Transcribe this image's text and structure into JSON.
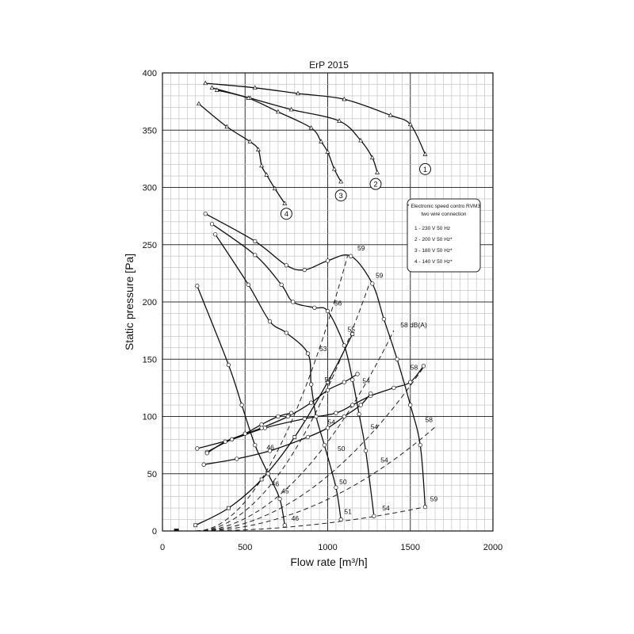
{
  "chart_data": {
    "type": "line",
    "title": "ErP 2015",
    "xlabel": "Flow rate [m³/h]",
    "ylabel": "Static pressure [Pa]",
    "xlim": [
      0,
      2000
    ],
    "ylim": [
      0,
      400
    ],
    "xticks": [
      0,
      500,
      1000,
      1500,
      2000
    ],
    "yticks": [
      0,
      50,
      100,
      150,
      200,
      250,
      300,
      350,
      400
    ],
    "grid": true,
    "legend": {
      "title": "* Electronic speed contro RVM3",
      "subtitle": "two wire connection",
      "entries": [
        "1 - 230 V 50 Hz",
        "2 - 200 V 50 Hz*",
        "3 - 180 V 50 Hz*",
        "4 - 140 V 50 Hz*"
      ]
    },
    "series": [
      {
        "name": "1",
        "marker": "triangle",
        "x": [
          260,
          560,
          820,
          1100,
          1380,
          1500,
          1590
        ],
        "y": [
          391,
          387,
          382,
          377,
          363,
          355,
          329
        ]
      },
      {
        "name": "2",
        "marker": "triangle",
        "x": [
          300,
          530,
          780,
          1070,
          1200,
          1270,
          1300
        ],
        "y": [
          387,
          378,
          368,
          358,
          341,
          326,
          313
        ]
      },
      {
        "name": "3",
        "marker": "triangle",
        "x": [
          330,
          520,
          700,
          900,
          960,
          1000,
          1040,
          1080
        ],
        "y": [
          385,
          378,
          366,
          352,
          340,
          331,
          316,
          305
        ]
      },
      {
        "name": "4",
        "marker": "triangle",
        "x": [
          220,
          390,
          530,
          580,
          600,
          630,
          680,
          740
        ],
        "y": [
          373,
          353,
          340,
          333,
          319,
          311,
          299,
          286
        ]
      },
      {
        "marker": "circle",
        "x": [
          260,
          560,
          750,
          860,
          1000,
          1140,
          1270,
          1340,
          1420,
          1500,
          1560,
          1590
        ],
        "y": [
          277,
          253,
          232,
          228,
          236,
          240,
          216,
          185,
          150,
          110,
          75,
          21
        ]
      },
      {
        "marker": "circle",
        "x": [
          300,
          560,
          720,
          790,
          920,
          1000,
          1100,
          1150,
          1190,
          1230,
          1280
        ],
        "y": [
          268,
          241,
          215,
          200,
          195,
          192,
          162,
          132,
          102,
          70,
          13
        ]
      },
      {
        "marker": "circle",
        "x": [
          320,
          520,
          650,
          750,
          880,
          900,
          930,
          980,
          1050,
          1080
        ],
        "y": [
          259,
          215,
          183,
          173,
          155,
          128,
          100,
          75,
          38,
          10
        ]
      },
      {
        "marker": "circle",
        "x": [
          210,
          400,
          480,
          560,
          640,
          710,
          740
        ],
        "y": [
          214,
          145,
          110,
          75,
          50,
          28,
          5
        ]
      },
      {
        "marker": "circle",
        "x": [
          210,
          420,
          620,
          860,
          1050,
          1150,
          1260,
          1400,
          1500,
          1580
        ],
        "y": [
          72,
          80,
          90,
          98,
          103,
          110,
          118,
          125,
          130,
          144
        ]
      },
      {
        "marker": "circle",
        "x": [
          250,
          450,
          650,
          880,
          1000,
          1100,
          1200,
          1260
        ],
        "y": [
          58,
          63,
          70,
          82,
          90,
          100,
          110,
          120
        ]
      },
      {
        "marker": "circle",
        "x": [
          270,
          420,
          600,
          760,
          900,
          1000,
          1100,
          1180
        ],
        "y": [
          69,
          80,
          90,
          100,
          112,
          123,
          130,
          137
        ]
      },
      {
        "marker": "circle",
        "x": [
          270,
          380,
          500,
          600,
          700,
          780
        ],
        "y": [
          68,
          78,
          85,
          93,
          100,
          103
        ]
      },
      {
        "marker": "square",
        "x": [
          200,
          400,
          600,
          800,
          1000,
          1150
        ],
        "y": [
          5,
          20,
          45,
          82,
          130,
          172
        ]
      }
    ],
    "system_curves": [
      {
        "end": [
          1120,
          240
        ],
        "style": "dashed"
      },
      {
        "end": [
          1250,
          215
        ],
        "style": "dashed"
      },
      {
        "end": [
          1400,
          175
        ],
        "style": "dashed"
      },
      {
        "end": [
          1590,
          145
        ],
        "style": "dashed"
      },
      {
        "end": [
          1660,
          92
        ],
        "style": "dashed"
      },
      {
        "end": [
          1590,
          21
        ],
        "style": "dashed"
      }
    ],
    "curve_labels": [
      {
        "text": "1",
        "x": 1590,
        "y": 316,
        "circled": true
      },
      {
        "text": "2",
        "x": 1290,
        "y": 303,
        "circled": true
      },
      {
        "text": "3",
        "x": 1080,
        "y": 293,
        "circled": true
      },
      {
        "text": "4",
        "x": 750,
        "y": 277,
        "circled": true
      }
    ],
    "annotations": [
      {
        "text": "59",
        "x": 1180,
        "y": 245
      },
      {
        "text": "59",
        "x": 1290,
        "y": 221
      },
      {
        "text": "56",
        "x": 1040,
        "y": 197
      },
      {
        "text": "58 dB(A)",
        "x": 1440,
        "y": 178
      },
      {
        "text": "55",
        "x": 1120,
        "y": 174
      },
      {
        "text": "53",
        "x": 950,
        "y": 157
      },
      {
        "text": "52",
        "x": 980,
        "y": 130
      },
      {
        "text": "54",
        "x": 1210,
        "y": 129
      },
      {
        "text": "58",
        "x": 1500,
        "y": 141
      },
      {
        "text": "54",
        "x": 1000,
        "y": 93
      },
      {
        "text": "54",
        "x": 1260,
        "y": 89
      },
      {
        "text": "58",
        "x": 1590,
        "y": 95
      },
      {
        "text": "46",
        "x": 630,
        "y": 71
      },
      {
        "text": "50",
        "x": 1060,
        "y": 70
      },
      {
        "text": "54",
        "x": 1320,
        "y": 60
      },
      {
        "text": "46",
        "x": 660,
        "y": 39
      },
      {
        "text": "50",
        "x": 1070,
        "y": 41
      },
      {
        "text": "45",
        "x": 720,
        "y": 33
      },
      {
        "text": "51",
        "x": 1100,
        "y": 15
      },
      {
        "text": "54",
        "x": 1330,
        "y": 18
      },
      {
        "text": "59",
        "x": 1620,
        "y": 26
      },
      {
        "text": "46",
        "x": 780,
        "y": 9
      }
    ]
  }
}
